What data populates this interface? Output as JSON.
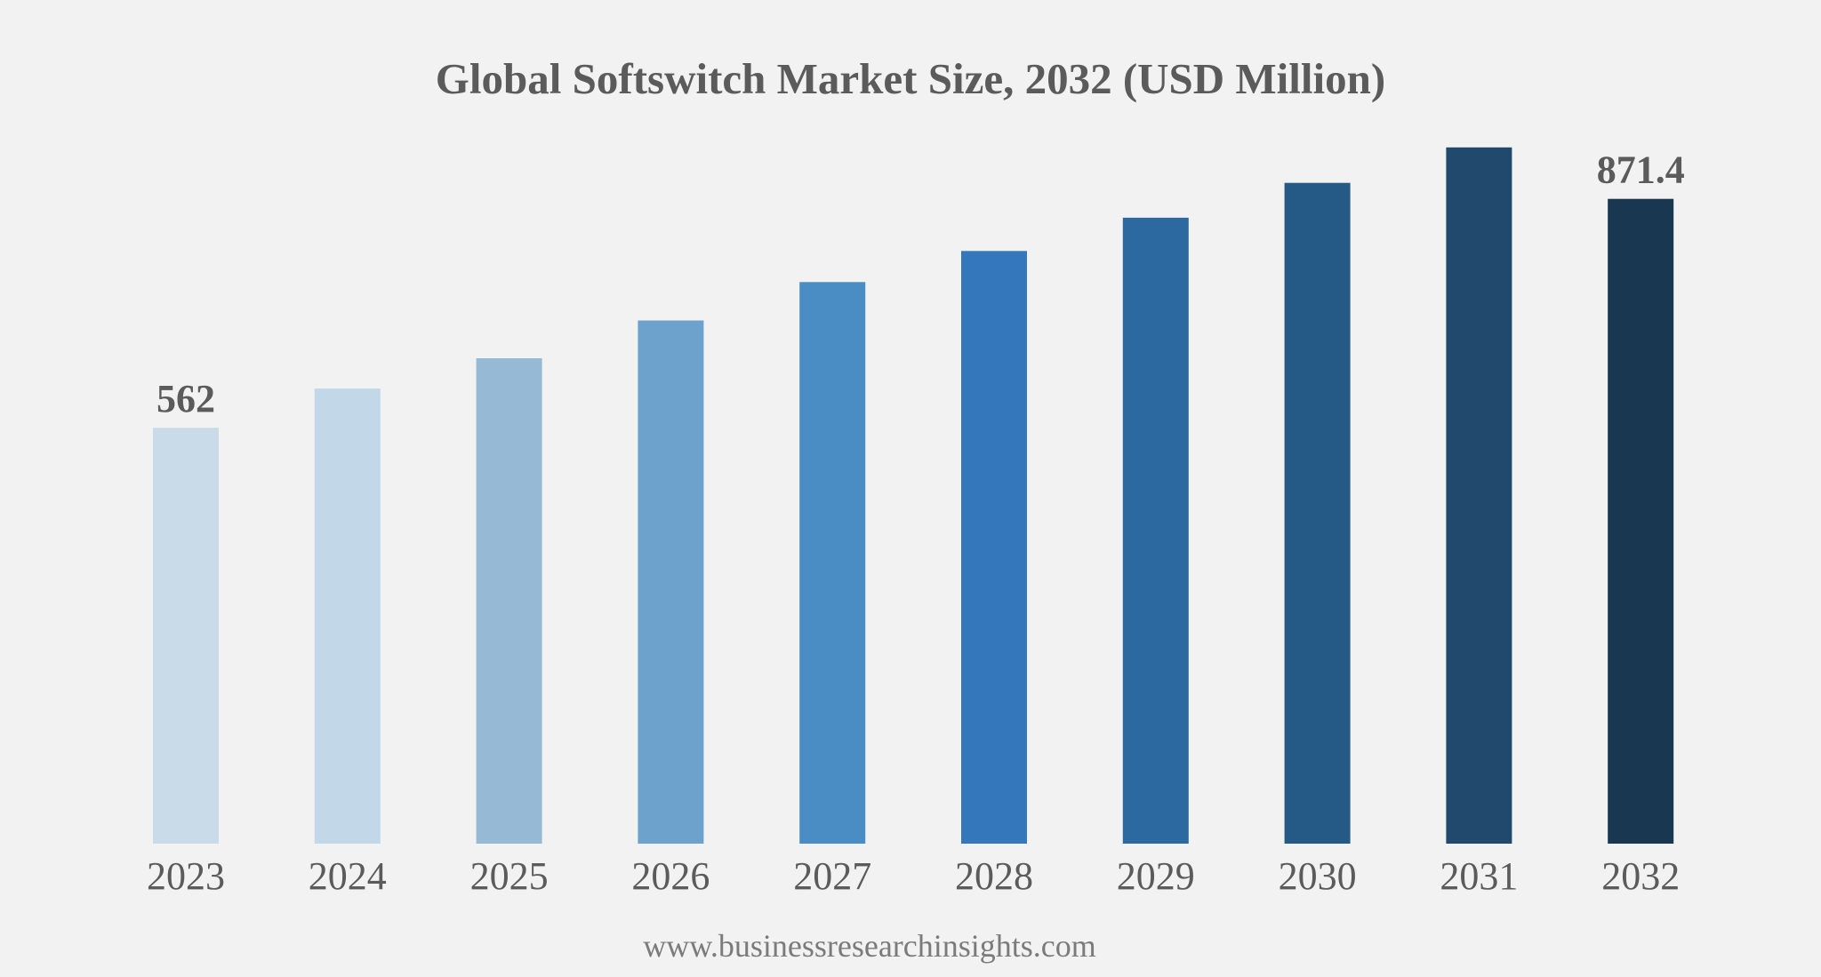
{
  "chart_data": {
    "type": "bar",
    "title": "Global Softswitch Market Size, 2032 (USD Million)",
    "xlabel": "",
    "ylabel": "",
    "grid": false,
    "legend": "none",
    "categories": [
      "2023",
      "2024",
      "2025",
      "2026",
      "2027",
      "2028",
      "2029",
      "2030",
      "2031",
      "2032"
    ],
    "values": [
      562,
      615,
      656,
      707,
      759,
      801,
      846,
      893,
      941,
      871.4
    ],
    "data_labels": [
      "562",
      "",
      "",
      "",
      "",
      "",
      "",
      "",
      "",
      "871.4"
    ],
    "ylim": [
      0,
      990
    ],
    "colors": [
      "#c9dbe8",
      "#c2d8e8",
      "#96bad6",
      "#6ca2cb",
      "#4a8cc4",
      "#3577bb",
      "#2d69a1",
      "#255a87",
      "#20496d",
      "#1a3752"
    ]
  },
  "source": "www.businessresearchinsights.com"
}
